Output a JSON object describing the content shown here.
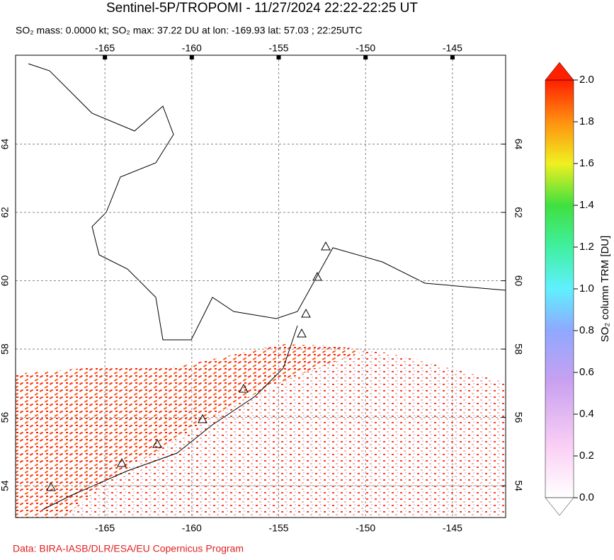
{
  "header": {
    "title": "Sentinel-5P/TROPOMI - 11/27/2024 22:22-22:25 UT",
    "subtitle": "SO₂ mass: 0.0000 kt; SO₂ max: 37.22 DU at lon: -169.93 lat: 57.03 ; 22:25UTC"
  },
  "map": {
    "lonlim": [
      -170.14,
      -141.94
    ],
    "latlim": [
      53.07,
      66.6
    ],
    "lon_ticks": [
      -165,
      -160,
      -155,
      -150,
      -145
    ],
    "lat_ticks": [
      54,
      56,
      58,
      60,
      62,
      64
    ]
  },
  "colorbar": {
    "label": "SO₂ column TRM [DU]",
    "lim": [
      0,
      2
    ],
    "ticks": [
      {
        "value": 0,
        "label": "0.0"
      },
      {
        "value": 0.2,
        "label": "0.2"
      },
      {
        "value": 0.4,
        "label": "0.4"
      },
      {
        "value": 0.6,
        "label": "0.6"
      },
      {
        "value": 0.8,
        "label": "0.8"
      },
      {
        "value": 1,
        "label": "1.0"
      },
      {
        "value": 1.2,
        "label": "1.2"
      },
      {
        "value": 1.4,
        "label": "1.4"
      },
      {
        "value": 1.6,
        "label": "1.6"
      },
      {
        "value": 1.8,
        "label": "1.8"
      },
      {
        "value": 2,
        "label": "2.0"
      }
    ]
  },
  "footer": {
    "credit": "Data: BIRA-IASB/DLR/ESA/EU Copernicus Program"
  }
}
